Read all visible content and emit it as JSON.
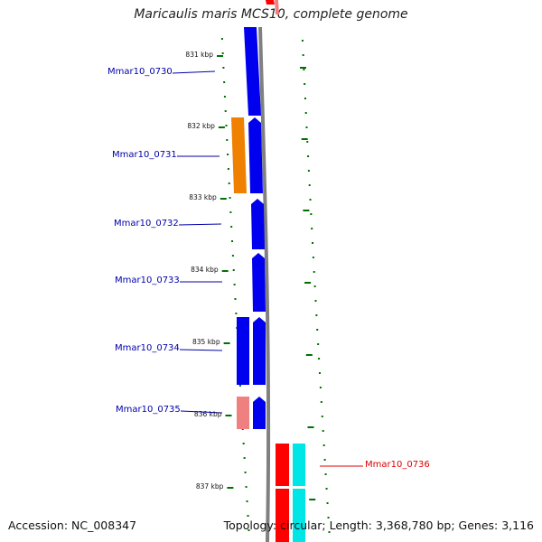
{
  "title": "Maricaulis maris MCS10, complete genome",
  "footer": {
    "accession": "Accession: NC_008347",
    "topology": "Topology: circular; Length: 3,368,780 bp; Genes: 3,116"
  },
  "colors": {
    "forward_gene": "#0000ee",
    "reverse_gene": "#ff0000",
    "orange_gene": "#f08000",
    "pink_gene": "#f08080",
    "cyan_gene": "#00e5e5",
    "backbone": "#808080",
    "tick": "#007000",
    "label_blue": "#0000aa",
    "label_red": "#dd0000"
  },
  "scale": {
    "ticks": [
      {
        "label": "831 kbp"
      },
      {
        "label": "832 kbp"
      },
      {
        "label": "833 kbp"
      },
      {
        "label": "834 kbp"
      },
      {
        "label": "835 kbp"
      },
      {
        "label": "836 kbp"
      },
      {
        "label": "837 kbp"
      }
    ]
  },
  "genes": [
    {
      "name": "Mmar10_0730",
      "color": "blue"
    },
    {
      "name": "Mmar10_0731",
      "color": "blue"
    },
    {
      "name": "Mmar10_0732",
      "color": "blue"
    },
    {
      "name": "Mmar10_0733",
      "color": "blue"
    },
    {
      "name": "Mmar10_0734",
      "color": "blue"
    },
    {
      "name": "Mmar10_0735",
      "color": "blue"
    },
    {
      "name": "Mmar10_0736",
      "color": "red"
    }
  ]
}
